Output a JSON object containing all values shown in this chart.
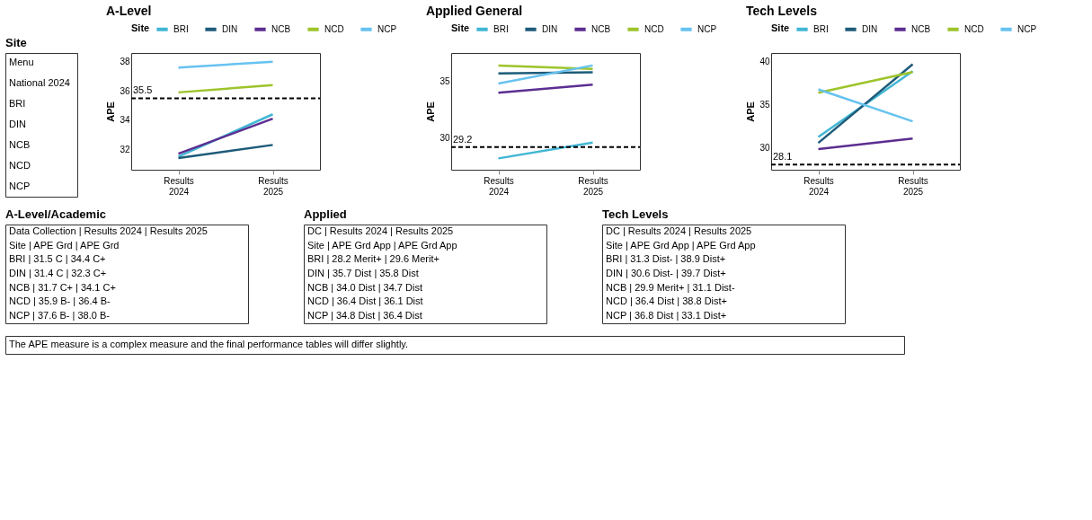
{
  "chart_data": [
    {
      "type": "other",
      "title": "Site",
      "annotations": [
        "Menu",
        "National 2024",
        "BRI",
        "DIN",
        "NCB",
        "NCD",
        "NCP"
      ]
    },
    {
      "type": "line",
      "title": "A-Level",
      "ylabel": "APE",
      "legend_title": "Site",
      "legend": "top",
      "grid": false,
      "categories": [
        "Results 2024",
        "Results 2025"
      ],
      "ylim": [
        30.6,
        38.6
      ],
      "yticks": [
        32,
        34,
        36,
        38
      ],
      "series": [
        {
          "name": "BRI",
          "color": "#41b6d4",
          "values": [
            31.5,
            34.4
          ]
        },
        {
          "name": "DIN",
          "color": "#1d5b79",
          "values": [
            31.4,
            32.3
          ]
        },
        {
          "name": "NCB",
          "color": "#5c2d91",
          "values": [
            31.7,
            34.1
          ]
        },
        {
          "name": "NCD",
          "color": "#9dc42a",
          "values": [
            35.9,
            36.4
          ]
        },
        {
          "name": "NCP",
          "color": "#66c2f0",
          "values": [
            37.6,
            38.0
          ]
        }
      ],
      "ref_lines": [
        {
          "axis": "y",
          "value": 35.5,
          "label": "35.5",
          "color": "#000000",
          "line_style": "dashed"
        }
      ]
    },
    {
      "type": "line",
      "title": "Applied General",
      "ylabel": "APE",
      "legend_title": "Site",
      "legend": "top",
      "grid": false,
      "categories": [
        "Results 2024",
        "Results 2025"
      ],
      "ylim": [
        27.2,
        37.5
      ],
      "yticks": [
        30,
        35
      ],
      "series": [
        {
          "name": "BRI",
          "color": "#41b6d4",
          "values": [
            28.2,
            29.6
          ]
        },
        {
          "name": "DIN",
          "color": "#1d5b79",
          "values": [
            35.7,
            35.8
          ]
        },
        {
          "name": "NCB",
          "color": "#5c2d91",
          "values": [
            34.0,
            34.7
          ]
        },
        {
          "name": "NCD",
          "color": "#9dc42a",
          "values": [
            36.4,
            36.1
          ]
        },
        {
          "name": "NCP",
          "color": "#66c2f0",
          "values": [
            34.8,
            36.4
          ]
        }
      ],
      "ref_lines": [
        {
          "axis": "y",
          "value": 29.2,
          "label": "29.2",
          "color": "#000000",
          "line_style": "dashed"
        }
      ]
    },
    {
      "type": "line",
      "title": "Tech Levels",
      "ylabel": "APE",
      "legend_title": "Site",
      "legend": "top",
      "grid": false,
      "categories": [
        "Results 2024",
        "Results 2025"
      ],
      "ylim": [
        27.5,
        41
      ],
      "yticks": [
        30,
        35,
        40
      ],
      "series": [
        {
          "name": "BRI",
          "color": "#41b6d4",
          "values": [
            31.3,
            38.9
          ]
        },
        {
          "name": "DIN",
          "color": "#1d5b79",
          "values": [
            30.6,
            39.7
          ]
        },
        {
          "name": "NCB",
          "color": "#5c2d91",
          "values": [
            29.9,
            31.1
          ]
        },
        {
          "name": "NCD",
          "color": "#9dc42a",
          "values": [
            36.4,
            38.8
          ]
        },
        {
          "name": "NCP",
          "color": "#66c2f0",
          "values": [
            36.8,
            33.1
          ]
        }
      ],
      "ref_lines": [
        {
          "axis": "y",
          "value": 28.1,
          "label": "28.1",
          "color": "#000000",
          "line_style": "dashed"
        }
      ]
    },
    {
      "type": "other",
      "title": "A-Level/Academic",
      "annotations": [
        "Data Collection | Results 2024 | Results 2025",
        "Site | APE Grd | APE Grd",
        "BRI | 31.5 C | 34.4 C+",
        "DIN | 31.4 C | 32.3 C+",
        "NCB | 31.7 C+ | 34.1 C+",
        "NCD | 35.9 B- | 36.4 B-",
        "NCP | 37.6 B- | 38.0 B-"
      ]
    },
    {
      "type": "other",
      "title": "Applied",
      "annotations": [
        "DC | Results 2024 | Results 2025",
        "Site | APE Grd App | APE Grd App",
        "BRI | 28.2 Merit+ | 29.6 Merit+",
        "DIN | 35.7 Dist | 35.8 Dist",
        "NCB | 34.0 Dist | 34.7 Dist",
        "NCD | 36.4 Dist | 36.1 Dist",
        "NCP | 34.8 Dist | 36.4 Dist"
      ]
    },
    {
      "type": "other",
      "title": "Tech Levels",
      "annotations": [
        "DC | Results 2024 | Results 2025",
        "Site | APE Grd App | APE Grd App",
        "BRI | 31.3 Dist- | 38.9 Dist+",
        "DIN | 30.6 Dist- | 39.7 Dist+",
        "NCB | 29.9 Merit+ | 31.1 Dist-",
        "NCD | 36.4 Dist | 38.8 Dist+",
        "NCP | 36.8 Dist | 33.1 Dist+"
      ]
    },
    {
      "type": "other",
      "annotations": [
        "The APE measure is a complex measure and the final performance tables will differ slightly."
      ]
    }
  ]
}
